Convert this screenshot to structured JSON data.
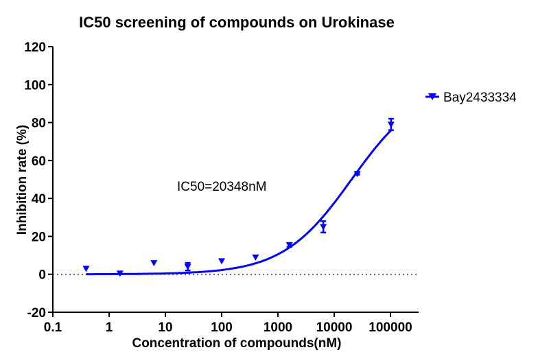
{
  "chart_data": {
    "type": "scatter",
    "title": "IC50 screening of compounds on Urokinase",
    "xlabel": "Concentration of compounds(nM)",
    "ylabel": "Inhibition rate (%)",
    "xscale": "log",
    "xlim": [
      0.1,
      316228
    ],
    "ylim": [
      -20,
      120
    ],
    "xticks": [
      "0.1",
      "1",
      "10",
      "100",
      "1000",
      "10000",
      "100000"
    ],
    "yticks": [
      "-20",
      "0",
      "20",
      "40",
      "60",
      "80",
      "100",
      "120"
    ],
    "annotation": "IC50=20348nM",
    "legend_position": "right",
    "series": [
      {
        "name": "Bay2433334",
        "color": "#0000ff",
        "marker": "triangle-down",
        "x": [
          0.39,
          1.56,
          6.25,
          25,
          100,
          400,
          1600,
          6400,
          25600,
          102400
        ],
        "y": [
          3,
          0.5,
          6,
          4,
          7,
          9,
          15.5,
          25,
          53,
          79
        ],
        "error": [
          0,
          0,
          0,
          2,
          0,
          0,
          1,
          3,
          0.5,
          3
        ],
        "fit": {
          "model": "four-parameter logistic",
          "bottom": 0,
          "top": 100,
          "ic50": 20348,
          "hill": 0.71
        }
      }
    ],
    "reference_line": {
      "y": 0,
      "style": "dotted"
    }
  }
}
